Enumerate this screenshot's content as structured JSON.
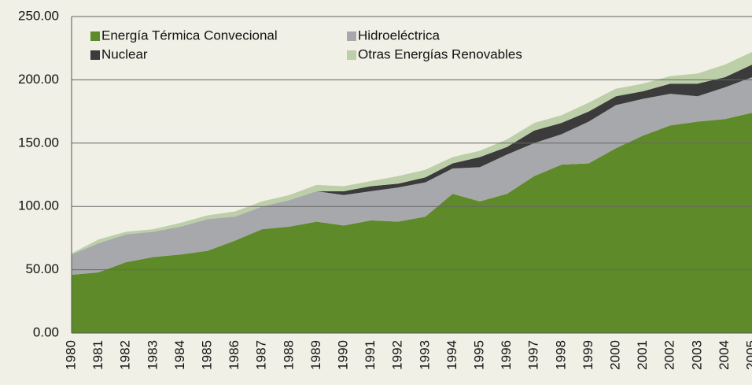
{
  "chart_data": {
    "type": "stacked_area",
    "categories": [
      "1980",
      "1981",
      "1982",
      "1983",
      "1984",
      "1985",
      "1986",
      "1987",
      "1988",
      "1989",
      "1990",
      "1991",
      "1992",
      "1993",
      "1994",
      "1995",
      "1996",
      "1997",
      "1998",
      "1999",
      "2000",
      "2001",
      "2002",
      "2003",
      "2004",
      "2005"
    ],
    "series": [
      {
        "name": "Energía Térmica Convecional",
        "color": "#5e8a2a",
        "values": [
          46,
          48,
          56,
          60,
          62,
          65,
          73,
          82,
          84,
          88,
          85,
          89,
          88,
          92,
          110,
          104,
          110,
          124,
          133,
          134,
          146,
          156,
          164,
          167,
          169,
          174
        ]
      },
      {
        "name": "Hidroeléctrica",
        "color": "#a7a8ab",
        "values": [
          16,
          23,
          22,
          20,
          22,
          25,
          19,
          18,
          21,
          24,
          24,
          23,
          27,
          27,
          20,
          27,
          31,
          26,
          24,
          33,
          34,
          29,
          25,
          20,
          25,
          28
        ]
      },
      {
        "name": "Nuclear",
        "color": "#3b3b3b",
        "values": [
          0,
          0,
          0,
          0,
          0,
          0,
          0,
          0,
          0,
          0,
          3,
          4,
          3,
          4,
          4,
          8,
          6,
          10,
          9,
          8,
          7,
          6,
          8,
          10,
          8,
          10
        ]
      },
      {
        "name": "Otras Energías Renovables",
        "color": "#bccfa8",
        "values": [
          1,
          3,
          2,
          2,
          3,
          3,
          4,
          4,
          4,
          5,
          4,
          4,
          6,
          6,
          5,
          5,
          6,
          6,
          6,
          7,
          6,
          6,
          6,
          8,
          10,
          10
        ]
      }
    ],
    "ylim": [
      0,
      250
    ],
    "yticks": [
      {
        "value": 0,
        "label": "0.00"
      },
      {
        "value": 50,
        "label": "50.00"
      },
      {
        "value": 100,
        "label": "100.00"
      },
      {
        "value": 150,
        "label": "150.00"
      },
      {
        "value": 200,
        "label": "200.00"
      },
      {
        "value": 250,
        "label": "250.00"
      }
    ],
    "grid": true,
    "legend": "top-left"
  }
}
